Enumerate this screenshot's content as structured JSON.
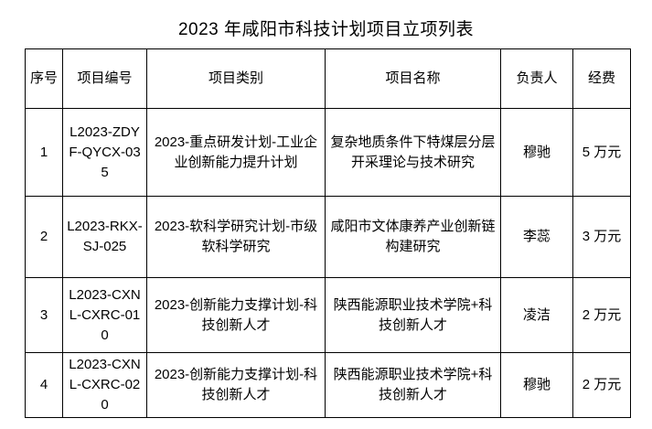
{
  "title": "2023 年咸阳市科技计划项目立项列表",
  "table": {
    "headers": {
      "no": "序号",
      "code": "项目编号",
      "category": "项目类别",
      "name": "项目名称",
      "leader": "负责人",
      "fund": "经费"
    },
    "rows": [
      {
        "no": "1",
        "code": "L2023-ZDYF-QYCX-035",
        "category": "2023-重点研发计划-工业企业创新能力提升计划",
        "name": "复杂地质条件下特煤层分层开采理论与技术研究",
        "leader": "穆驰",
        "fund": "5 万元"
      },
      {
        "no": "2",
        "code": "L2023-RKX-SJ-025",
        "category": "2023-软科学研究计划-市级软科学研究",
        "name": "咸阳市文体康养产业创新链构建研究",
        "leader": "李蕊",
        "fund": "3 万元"
      },
      {
        "no": "3",
        "code": "L2023-CXNL-CXRC-010",
        "category": "2023-创新能力支撑计划-科技创新人才",
        "name": "陕西能源职业技术学院+科技创新人才",
        "leader": "凌洁",
        "fund": "2 万元"
      },
      {
        "no": "4",
        "code": "L2023-CXNL-CXRC-020",
        "category": "2023-创新能力支撑计划-科技创新人才",
        "name": "陕西能源职业技术学院+科技创新人才",
        "leader": "穆驰",
        "fund": "2 万元"
      }
    ]
  },
  "colors": {
    "background": "#ffffff",
    "border": "#000000",
    "text": "#000000"
  }
}
